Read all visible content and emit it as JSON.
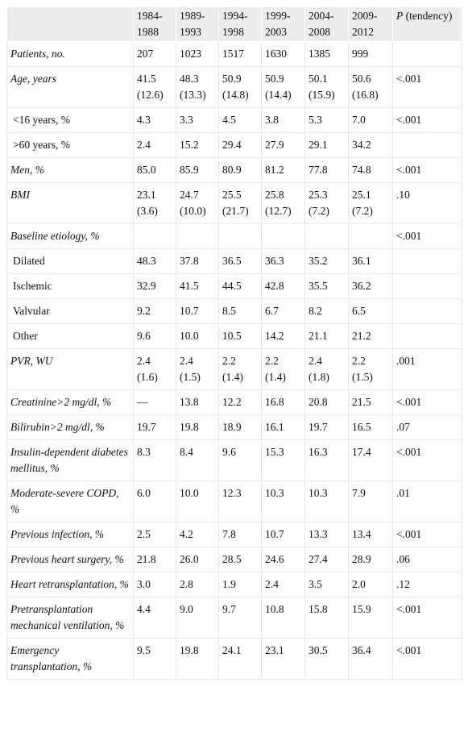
{
  "table": {
    "columns": [
      "1984-1988",
      "1989-1993",
      "1994-1998",
      "1999-2003",
      "2004-2008",
      "2009-2012"
    ],
    "p_header": {
      "symbol": "P",
      "text": "(tendency)"
    },
    "rows": [
      {
        "label": "Patients, no.",
        "italic": true,
        "cells": [
          "207",
          "1023",
          "1517",
          "1630",
          "1385",
          "999",
          null
        ]
      },
      {
        "label": "Age, years",
        "italic": true,
        "cells": [
          "41.5 (12.6)",
          "48.3 (13.3)",
          "50.9 (14.8)",
          "50.9 (14.4)",
          "50.1 (15.9)",
          "50.6 (16.8)",
          "<.001"
        ]
      },
      {
        "label": "<16 years, %",
        "italic": false,
        "cells": [
          "4.3",
          "3.3",
          "4.5",
          "3.8",
          "5.3",
          "7.0",
          "<.001"
        ]
      },
      {
        "label": ">60 years, %",
        "italic": false,
        "cells": [
          "2.4",
          "15.2",
          "29.4",
          "27.9",
          "29.1",
          "34.2",
          null
        ]
      },
      {
        "label": "Men, %",
        "italic": true,
        "cells": [
          "85.0",
          "85.9",
          "80.9",
          "81.2",
          "77.8",
          "74.8",
          "<.001"
        ]
      },
      {
        "label": "BMI",
        "italic": true,
        "cells": [
          "23.1 (3.6)",
          "24.7 (10.0)",
          "25.5 (21.7)",
          "25.8 (12.7)",
          "25.3 (7.2)",
          "25.1 (7.2)",
          ".10"
        ]
      },
      {
        "label": "Baseline etiology, %",
        "italic": true,
        "cells": [
          null,
          null,
          null,
          null,
          null,
          null,
          "<.001"
        ]
      },
      {
        "label": "Dilated",
        "italic": false,
        "cells": [
          "48.3",
          "37.8",
          "36.5",
          "36.3",
          "35.2",
          "36.1",
          null
        ]
      },
      {
        "label": "Ischemic",
        "italic": false,
        "cells": [
          "32.9",
          "41.5",
          "44.5",
          "42.8",
          "35.5",
          "36.2",
          null
        ]
      },
      {
        "label": "Valvular",
        "italic": false,
        "cells": [
          "9.2",
          "10.7",
          "8.5",
          "6.7",
          "8.2",
          "6.5",
          null
        ]
      },
      {
        "label": "Other",
        "italic": false,
        "cells": [
          "9.6",
          "10.0",
          "10.5",
          "14.2",
          "21.1",
          "21.2",
          null
        ]
      },
      {
        "label": "PVR, WU",
        "italic": true,
        "cells": [
          "2.4 (1.6)",
          "2.4 (1.5)",
          "2.2 (1.4)",
          "2.2 (1.4)",
          "2.4 (1.8)",
          "2.2 (1.5)",
          ".001"
        ]
      },
      {
        "label": "Creatinine>2 mg/dl, %",
        "italic": true,
        "cells": [
          "—",
          "13.8",
          "12.2",
          "16.8",
          "20.8",
          "21.5",
          "<.001"
        ]
      },
      {
        "label": "Bilirubin>2 mg/dl, %",
        "italic": true,
        "cells": [
          "19.7",
          "19.8",
          "18.9",
          "16.1",
          "19.7",
          "16.5",
          ".07"
        ]
      },
      {
        "label": "Insulin-dependent diabetes mellitus, %",
        "italic": true,
        "cells": [
          "8.3",
          "8.4",
          "9.6",
          "15.3",
          "16.3",
          "17.4",
          "<.001"
        ]
      },
      {
        "label": "Moderate-severe COPD, %",
        "italic": true,
        "cells": [
          "6.0",
          "10.0",
          "12.3",
          "10.3",
          "10.3",
          "7.9",
          ".01"
        ]
      },
      {
        "label": "Previous infection, %",
        "italic": true,
        "cells": [
          "2.5",
          "4.2",
          "7.8",
          "10.7",
          "13.3",
          "13.4",
          "<.001"
        ]
      },
      {
        "label": "Previous heart surgery, %",
        "italic": true,
        "cells": [
          "21.8",
          "26.0",
          "28.5",
          "24.6",
          "27.4",
          "28.9",
          ".06"
        ]
      },
      {
        "label": "Heart retransplantation, %",
        "italic": true,
        "cells": [
          "3.0",
          "2.8",
          "1.9",
          "2.4",
          "3.5",
          "2.0",
          ".12"
        ]
      },
      {
        "label": "Pretransplantation mechanical ventilation, %",
        "italic": true,
        "cells": [
          "4.4",
          "9.0",
          "9.7",
          "10.8",
          "15.8",
          "15.9",
          "<.001"
        ]
      },
      {
        "label": "Emergency transplantation, %",
        "italic": true,
        "cells": [
          "9.5",
          "19.8",
          "24.1",
          "23.1",
          "30.5",
          "36.4",
          "<.001"
        ]
      }
    ]
  }
}
